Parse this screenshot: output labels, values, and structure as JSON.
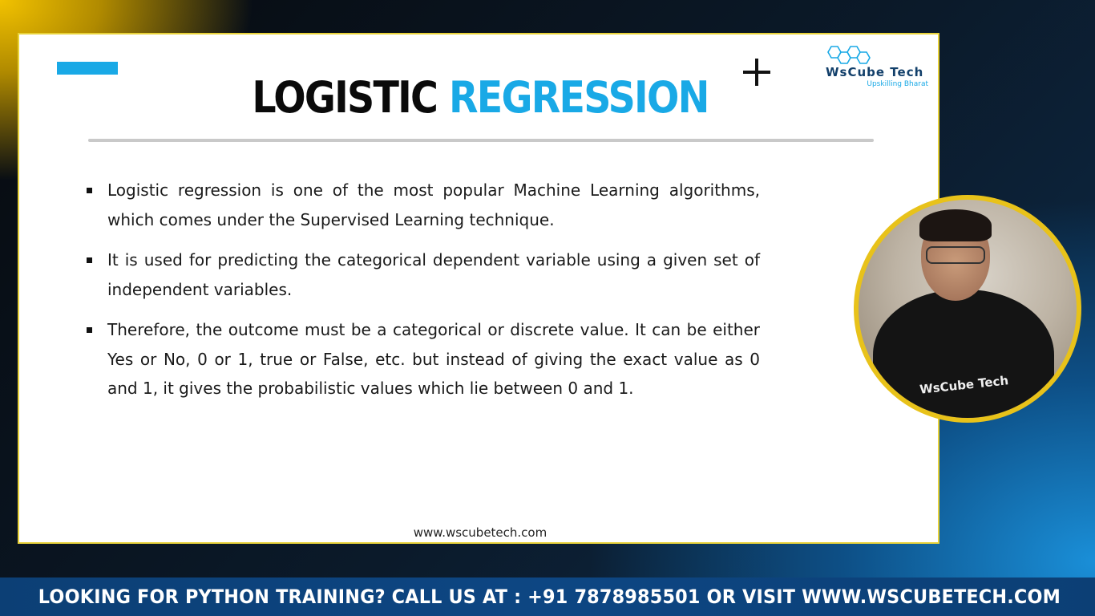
{
  "slide": {
    "title_part1": "LOGISTIC",
    "title_part2": "REGRESSION",
    "bullets": [
      "Logistic regression is one of the most popular Machine Learning algorithms, which comes under the Supervised Learning technique.",
      "It is used for predicting the categorical dependent variable using a given set of independent variables.",
      "Therefore, the outcome must be a categorical or discrete value. It can be either Yes or No, 0 or 1, true or False, etc. but instead of giving the exact value as 0 and 1, it gives the probabilistic values which lie between 0 and 1."
    ],
    "url": "www.wscubetech.com"
  },
  "logo": {
    "name": "WsCube Tech",
    "tagline": "Upskilling Bharat"
  },
  "webcam": {
    "shirt_text": "WsCube Tech"
  },
  "footer": {
    "text": "LOOKING FOR PYTHON TRAINING? CALL US AT : +91 7878985501 OR VISIT WWW.WSCUBETECH.COM"
  },
  "colors": {
    "accent_blue": "#19a9e6",
    "slide_border": "#e8d23a",
    "footer_bg": "#0d4683",
    "title_dark": "#0a0a0a"
  },
  "icons": [
    "plus-icon",
    "hexagon-logo-icon",
    "bullet-square-icon"
  ]
}
